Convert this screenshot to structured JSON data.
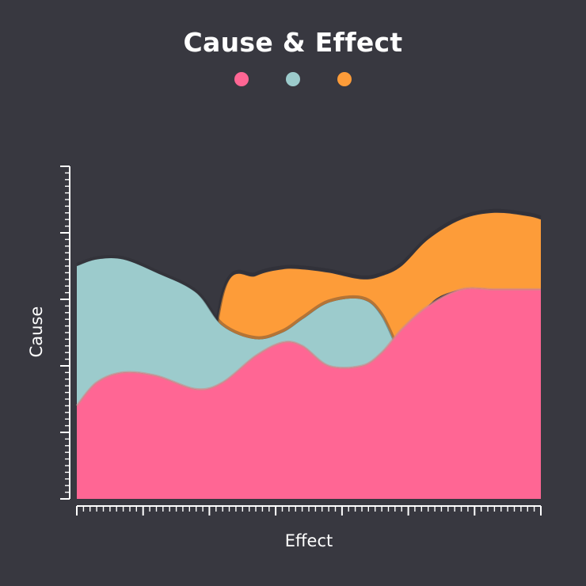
{
  "chart_data": {
    "type": "area",
    "title": "Cause & Effect",
    "xlabel": "Effect",
    "ylabel": "Cause",
    "xlim": [
      0,
      70
    ],
    "ylim": [
      0,
      100
    ],
    "grid": false,
    "legend": "top-center",
    "x": [
      0,
      3,
      7,
      12,
      18,
      22,
      27,
      31,
      34,
      38,
      43,
      46,
      49,
      53,
      58,
      63,
      68,
      70
    ],
    "series": [
      {
        "color": "#ff6694",
        "values": [
          28,
          35,
          38,
          37,
          33,
          35,
          43,
          47,
          46,
          40,
          40,
          44,
          51,
          58,
          63,
          63,
          63,
          63
        ]
      },
      {
        "color": "#9ccbcc",
        "values": [
          70,
          72,
          72,
          68,
          62,
          52,
          48,
          50,
          54,
          59,
          60,
          55,
          42,
          0,
          0,
          0,
          0,
          0
        ],
        "x_end": 49
      },
      {
        "color": "#fd9c39",
        "values": [
          0,
          0,
          0,
          0,
          0,
          61,
          67,
          69,
          69,
          68,
          66,
          67,
          70,
          78,
          84,
          86,
          85,
          84
        ],
        "x_start": 18
      }
    ]
  }
}
